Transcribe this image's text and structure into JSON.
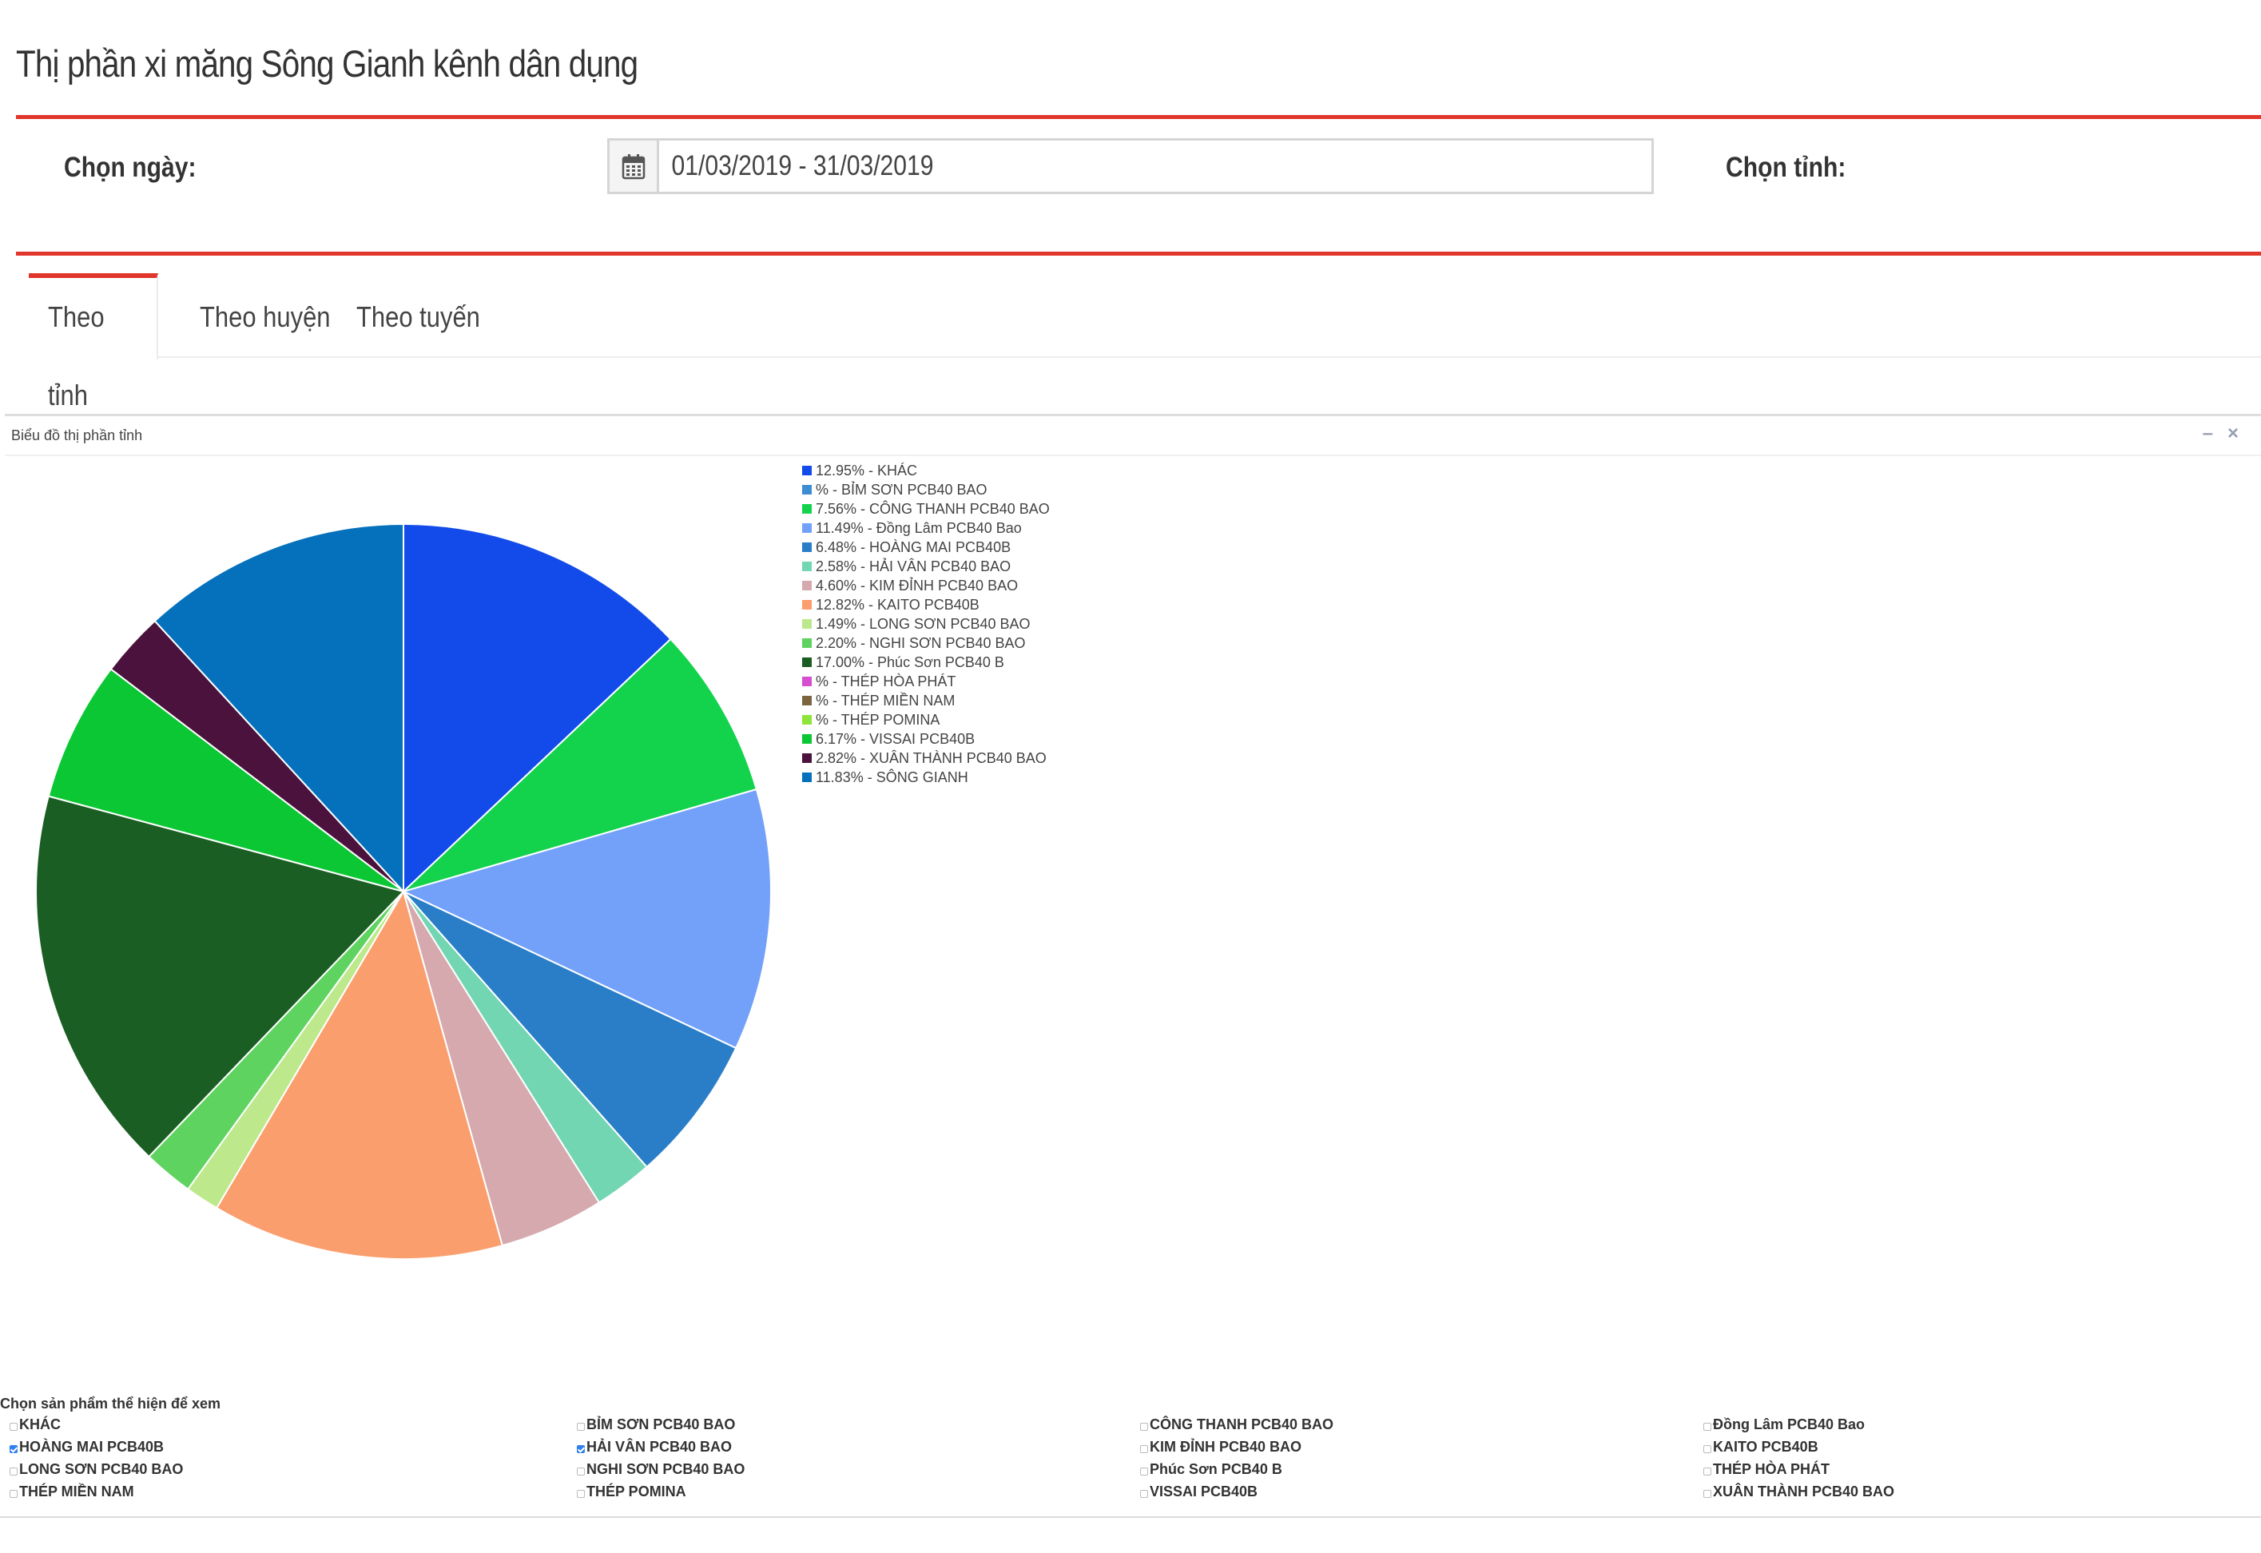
{
  "header": {
    "title": "Thị phần xi măng Sông Gianh kênh dân dụng"
  },
  "filters": {
    "date_label": "Chọn ngày:",
    "date_range": "01/03/2019 - 31/03/2019",
    "province_label": "Chọn tỉnh:"
  },
  "tabs": [
    {
      "label": "Theo tỉnh",
      "active": true
    },
    {
      "label": "Theo huyện",
      "active": false
    },
    {
      "label": "Theo tuyến",
      "active": false
    }
  ],
  "box": {
    "title": "Biểu đồ thị phần tỉnh",
    "minimize_icon": "minus-icon",
    "close_icon": "close-icon"
  },
  "chart_data": {
    "type": "pie",
    "legend_position": "right",
    "slices": [
      {
        "label": "12.95% - KHÁC",
        "name": "KHÁC",
        "value": 12.95,
        "color": "#134bea"
      },
      {
        "label": "% - BỈM SƠN PCB40 BAO",
        "name": "BỈM SƠN PCB40 BAO",
        "value": 0,
        "color": "#3c8dd2"
      },
      {
        "label": "7.56% - CÔNG THANH PCB40 BAO",
        "name": "CÔNG THANH PCB40 BAO",
        "value": 7.56,
        "color": "#13d34c"
      },
      {
        "label": "11.49% - Đồng Lâm PCB40 Bao",
        "name": "Đồng Lâm PCB40 Bao",
        "value": 11.49,
        "color": "#73a1fa"
      },
      {
        "label": "6.48% - HOÀNG MAI PCB40B",
        "name": "HOÀNG MAI PCB40B",
        "value": 6.48,
        "color": "#2a7ec7"
      },
      {
        "label": "2.58% - HẢI VÂN PCB40 BAO",
        "name": "HẢI VÂN PCB40 BAO",
        "value": 2.58,
        "color": "#73d6b3"
      },
      {
        "label": "4.60% - KIM ĐỈNH PCB40 BAO",
        "name": "KIM ĐỈNH PCB40 BAO",
        "value": 4.6,
        "color": "#d5a9ad"
      },
      {
        "label": "12.82% - KAITO PCB40B",
        "name": "KAITO PCB40B",
        "value": 12.82,
        "color": "#fb9e6d"
      },
      {
        "label": "1.49% - LONG SƠN PCB40 BAO",
        "name": "LONG SƠN PCB40 BAO",
        "value": 1.49,
        "color": "#bde98c"
      },
      {
        "label": "2.20% - NGHI SƠN PCB40 BAO",
        "name": "NGHI SƠN PCB40 BAO",
        "value": 2.2,
        "color": "#5fd35f"
      },
      {
        "label": "17.00% - Phúc Sơn PCB40 B",
        "name": "Phúc Sơn PCB40 B",
        "value": 17.0,
        "color": "#1b5e24"
      },
      {
        "label": "% - THÉP HÒA PHÁT",
        "name": "THÉP HÒA PHÁT",
        "value": 0,
        "color": "#d64fd0"
      },
      {
        "label": "% - THÉP MIỀN NAM",
        "name": "THÉP MIỀN NAM",
        "value": 0,
        "color": "#7d6440"
      },
      {
        "label": "% - THÉP POMINA",
        "name": "THÉP POMINA",
        "value": 0,
        "color": "#8de53c"
      },
      {
        "label": "6.17% - VISSAI PCB40B",
        "name": "VISSAI PCB40B",
        "value": 6.17,
        "color": "#0bc734"
      },
      {
        "label": "2.82% - XUÂN THÀNH PCB40 BAO",
        "name": "XUÂN THÀNH PCB40 BAO",
        "value": 2.82,
        "color": "#4a123c"
      },
      {
        "label": "11.83% - SÔNG GIANH",
        "name": "SÔNG GIANH",
        "value": 11.83,
        "color": "#0571bc"
      }
    ]
  },
  "selector": {
    "title": "Chọn sản phẩm thể hiện để xem",
    "columns": [
      [
        {
          "label": "KHÁC",
          "checked": false
        },
        {
          "label": "HOÀNG MAI PCB40B",
          "checked": true
        },
        {
          "label": "LONG SƠN PCB40 BAO",
          "checked": false
        },
        {
          "label": "THÉP MIỀN NAM",
          "checked": false
        }
      ],
      [
        {
          "label": "BỈM SƠN PCB40 BAO",
          "checked": false
        },
        {
          "label": "HẢI VÂN PCB40 BAO",
          "checked": true
        },
        {
          "label": "NGHI SƠN PCB40 BAO",
          "checked": false
        },
        {
          "label": "THÉP POMINA",
          "checked": false
        }
      ],
      [
        {
          "label": "CÔNG THANH PCB40 BAO",
          "checked": false
        },
        {
          "label": "KIM ĐỈNH PCB40 BAO",
          "checked": false
        },
        {
          "label": "Phúc Sơn PCB40 B",
          "checked": false
        },
        {
          "label": "VISSAI PCB40B",
          "checked": false
        }
      ],
      [
        {
          "label": "Đồng Lâm PCB40 Bao",
          "checked": false
        },
        {
          "label": "KAITO PCB40B",
          "checked": false
        },
        {
          "label": "THÉP HÒA PHÁT",
          "checked": false
        },
        {
          "label": "XUÂN THÀNH PCB40 BAO",
          "checked": false
        }
      ]
    ]
  }
}
